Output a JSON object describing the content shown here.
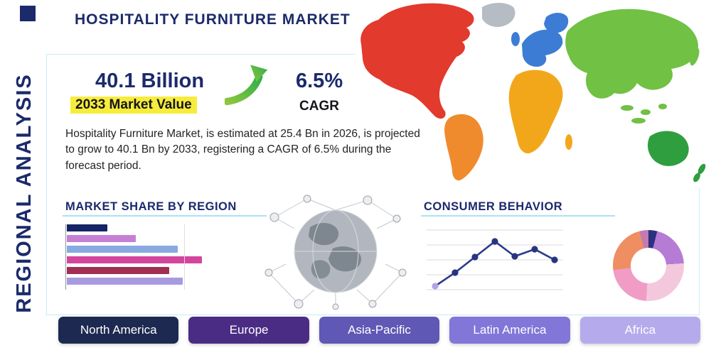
{
  "colors": {
    "navy": "#1b2a6b",
    "highlight_yellow": "#f7ec3c",
    "rule_cyan": "#a9e3f4",
    "panel_border": "#c9ebf5"
  },
  "header": {
    "title": "HOSPITALITY FURNITURE MARKET",
    "side_label": "REGIONAL ANALYSIS"
  },
  "stats": {
    "market_value": "40.1 Billion",
    "market_value_label": "2033 Market Value",
    "cagr_value": "6.5%",
    "cagr_label": "CAGR",
    "description": "Hospitality Furniture Market, is estimated at 25.4 Bn in 2026, is projected to grow to 40.1 Bn by 2033, registering a CAGR of 6.5% during the forecast period."
  },
  "sections": {
    "market_share_heading": "MARKET SHARE BY REGION",
    "consumer_behavior_heading": "CONSUMER BEHAVIOR"
  },
  "icons": {
    "growth_arrow": "curved-growth-arrow-up-right",
    "globe_network": "globe-with-network-nodes"
  },
  "chart_data": [
    {
      "type": "bar",
      "title": "MARKET SHARE BY REGION",
      "orientation": "horizontal",
      "note": "bars unlabeled in image; values are relative lengths as % of longest bar",
      "values": [
        30,
        51,
        82,
        100,
        76,
        86
      ],
      "colors": [
        "#152465",
        "#c77fd4",
        "#88a9e2",
        "#d4469e",
        "#a02e55",
        "#a89ae0"
      ],
      "grid": true,
      "legend": false
    },
    {
      "type": "line",
      "title": "CONSUMER BEHAVIOR",
      "x": [
        1,
        2,
        3,
        4,
        5,
        6,
        7
      ],
      "values": [
        12,
        33,
        56,
        80,
        58,
        68,
        52
      ],
      "note": "axes unlabeled in image; values are relative heights on 0-100 scale",
      "line_color": "#2b3a8c",
      "marker_color": "#27357f",
      "first_marker_color": "#b3a3e6",
      "grid": true,
      "legend": false
    },
    {
      "type": "pie",
      "title": "regional share donut",
      "donut": true,
      "note": "slices unlabeled in image; values estimated %, clockwise from top",
      "values": [
        4,
        20,
        27,
        22,
        23,
        4
      ],
      "colors": [
        "#2a3180",
        "#b67bd4",
        "#f4c8dc",
        "#f09cc4",
        "#ee8e62",
        "#c47ab2"
      ],
      "legend": false
    }
  ],
  "map": {
    "region_colors": {
      "north_america": "#e23a2c",
      "greenland": "#b6bcc4",
      "south_america": "#ef8b2d",
      "europe": "#3c7cd4",
      "africa": "#f2a71b",
      "asia": "#70c144",
      "australia": "#2e9e3f"
    }
  },
  "region_buttons": [
    {
      "label": "North America",
      "color": "#1d2951"
    },
    {
      "label": "Europe",
      "color": "#4a2c85"
    },
    {
      "label": "Asia-Pacific",
      "color": "#5f58b5"
    },
    {
      "label": "Latin America",
      "color": "#8276d8"
    },
    {
      "label": "Africa",
      "color": "#b5abec"
    }
  ]
}
